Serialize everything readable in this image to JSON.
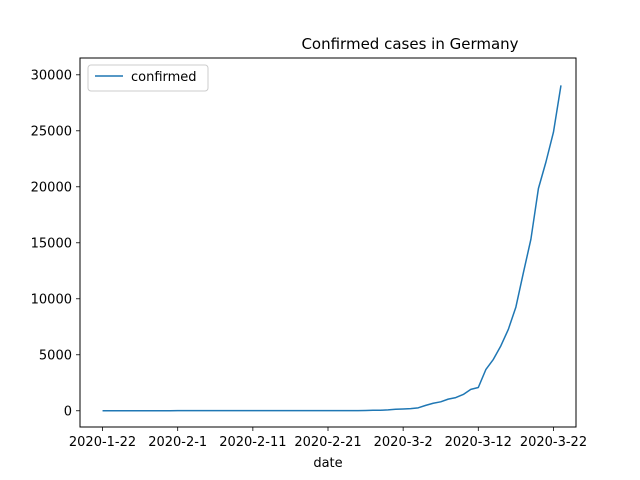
{
  "chart_data": {
    "type": "line",
    "title": "Confirmed cases in Germany",
    "xlabel": "date",
    "ylabel": "",
    "legend": {
      "placement": "top-left",
      "entries": [
        "confirmed"
      ]
    },
    "x_ticks": [
      "2020-1-22",
      "2020-2-1",
      "2020-2-11",
      "2020-2-21",
      "2020-3-2",
      "2020-3-12",
      "2020-3-22"
    ],
    "y_ticks": [
      0,
      5000,
      10000,
      15000,
      20000,
      25000,
      30000
    ],
    "ylim": [
      -1450,
      31500
    ],
    "xlim": [
      "2020-1-19",
      "2020-3-25"
    ],
    "grid": false,
    "series": [
      {
        "name": "confirmed",
        "color": "#1f77b4",
        "x": [
          "2020-1-22",
          "2020-1-23",
          "2020-1-24",
          "2020-1-25",
          "2020-1-26",
          "2020-1-27",
          "2020-1-28",
          "2020-1-29",
          "2020-1-30",
          "2020-1-31",
          "2020-2-1",
          "2020-2-2",
          "2020-2-3",
          "2020-2-4",
          "2020-2-5",
          "2020-2-6",
          "2020-2-7",
          "2020-2-8",
          "2020-2-9",
          "2020-2-10",
          "2020-2-11",
          "2020-2-12",
          "2020-2-13",
          "2020-2-14",
          "2020-2-15",
          "2020-2-16",
          "2020-2-17",
          "2020-2-18",
          "2020-2-19",
          "2020-2-20",
          "2020-2-21",
          "2020-2-22",
          "2020-2-23",
          "2020-2-24",
          "2020-2-25",
          "2020-2-26",
          "2020-2-27",
          "2020-2-28",
          "2020-2-29",
          "2020-3-1",
          "2020-3-2",
          "2020-3-3",
          "2020-3-4",
          "2020-3-5",
          "2020-3-6",
          "2020-3-7",
          "2020-3-8",
          "2020-3-9",
          "2020-3-10",
          "2020-3-11",
          "2020-3-12",
          "2020-3-13",
          "2020-3-14",
          "2020-3-15",
          "2020-3-16",
          "2020-3-17",
          "2020-3-18",
          "2020-3-19",
          "2020-3-20",
          "2020-3-21",
          "2020-3-22",
          "2020-3-23"
        ],
        "values": [
          0,
          0,
          0,
          0,
          0,
          1,
          4,
          4,
          4,
          5,
          8,
          10,
          12,
          12,
          12,
          12,
          13,
          13,
          14,
          14,
          16,
          16,
          16,
          16,
          16,
          16,
          16,
          16,
          16,
          16,
          16,
          16,
          16,
          16,
          17,
          27,
          46,
          48,
          79,
          130,
          159,
          196,
          262,
          482,
          670,
          799,
          1040,
          1176,
          1457,
          1908,
          2078,
          3675,
          4585,
          5795,
          7272,
          9257,
          12327,
          15320,
          19848,
          22213,
          24873,
          29056
        ]
      }
    ]
  }
}
